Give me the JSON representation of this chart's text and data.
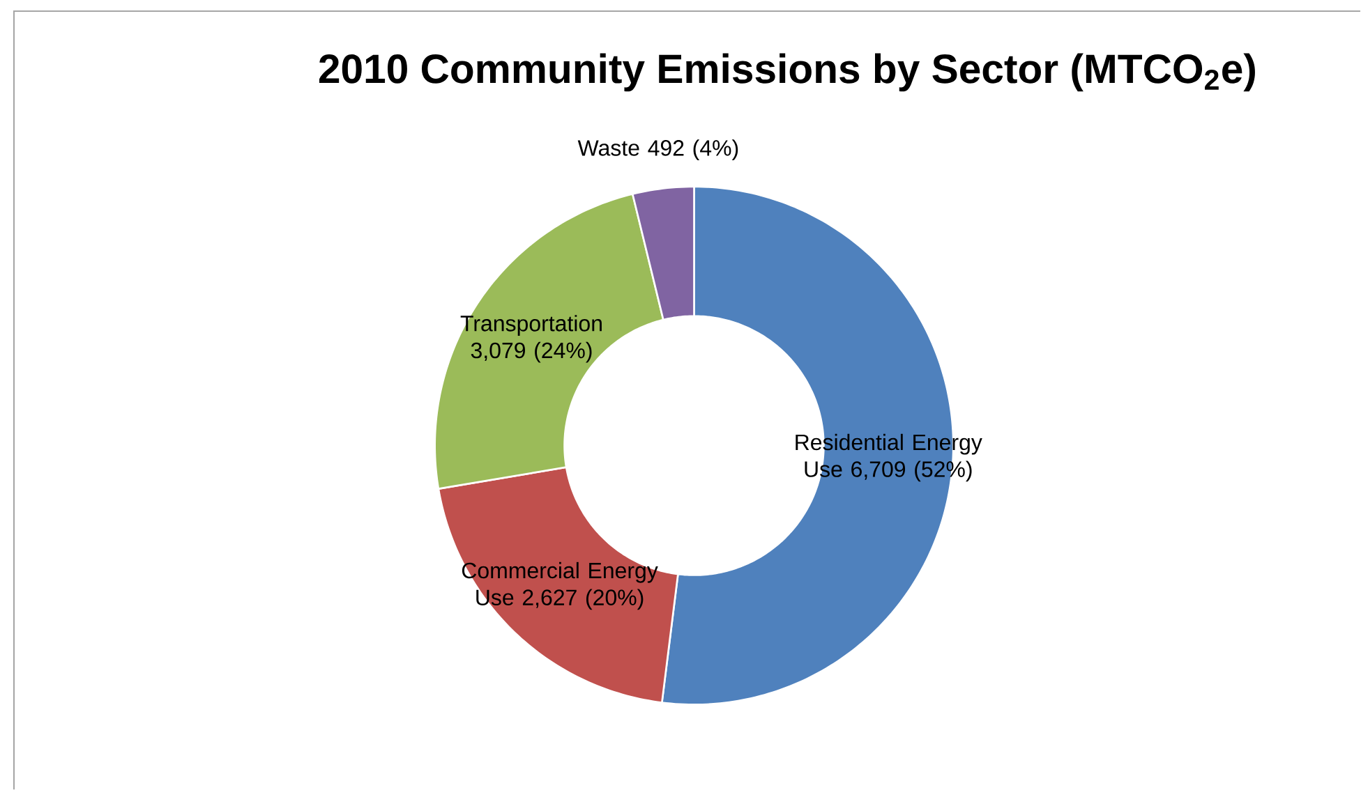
{
  "chart_data": {
    "type": "donut",
    "title": "2010 Community Emissions by Sector (MTCO$_{2}$e)",
    "categories": [
      "Residential Energy Use",
      "Commercial Energy Use",
      "Transportation",
      "Waste"
    ],
    "values": [
      6709,
      2627,
      3079,
      492
    ],
    "value_labels": [
      "6,709 (52%)",
      "2,627 (20%)",
      "3,079 (24%)",
      "492 (4%)"
    ],
    "colors": [
      "#4f81bd",
      "#c0504d",
      "#9bbb59",
      "#8064a2"
    ]
  }
}
